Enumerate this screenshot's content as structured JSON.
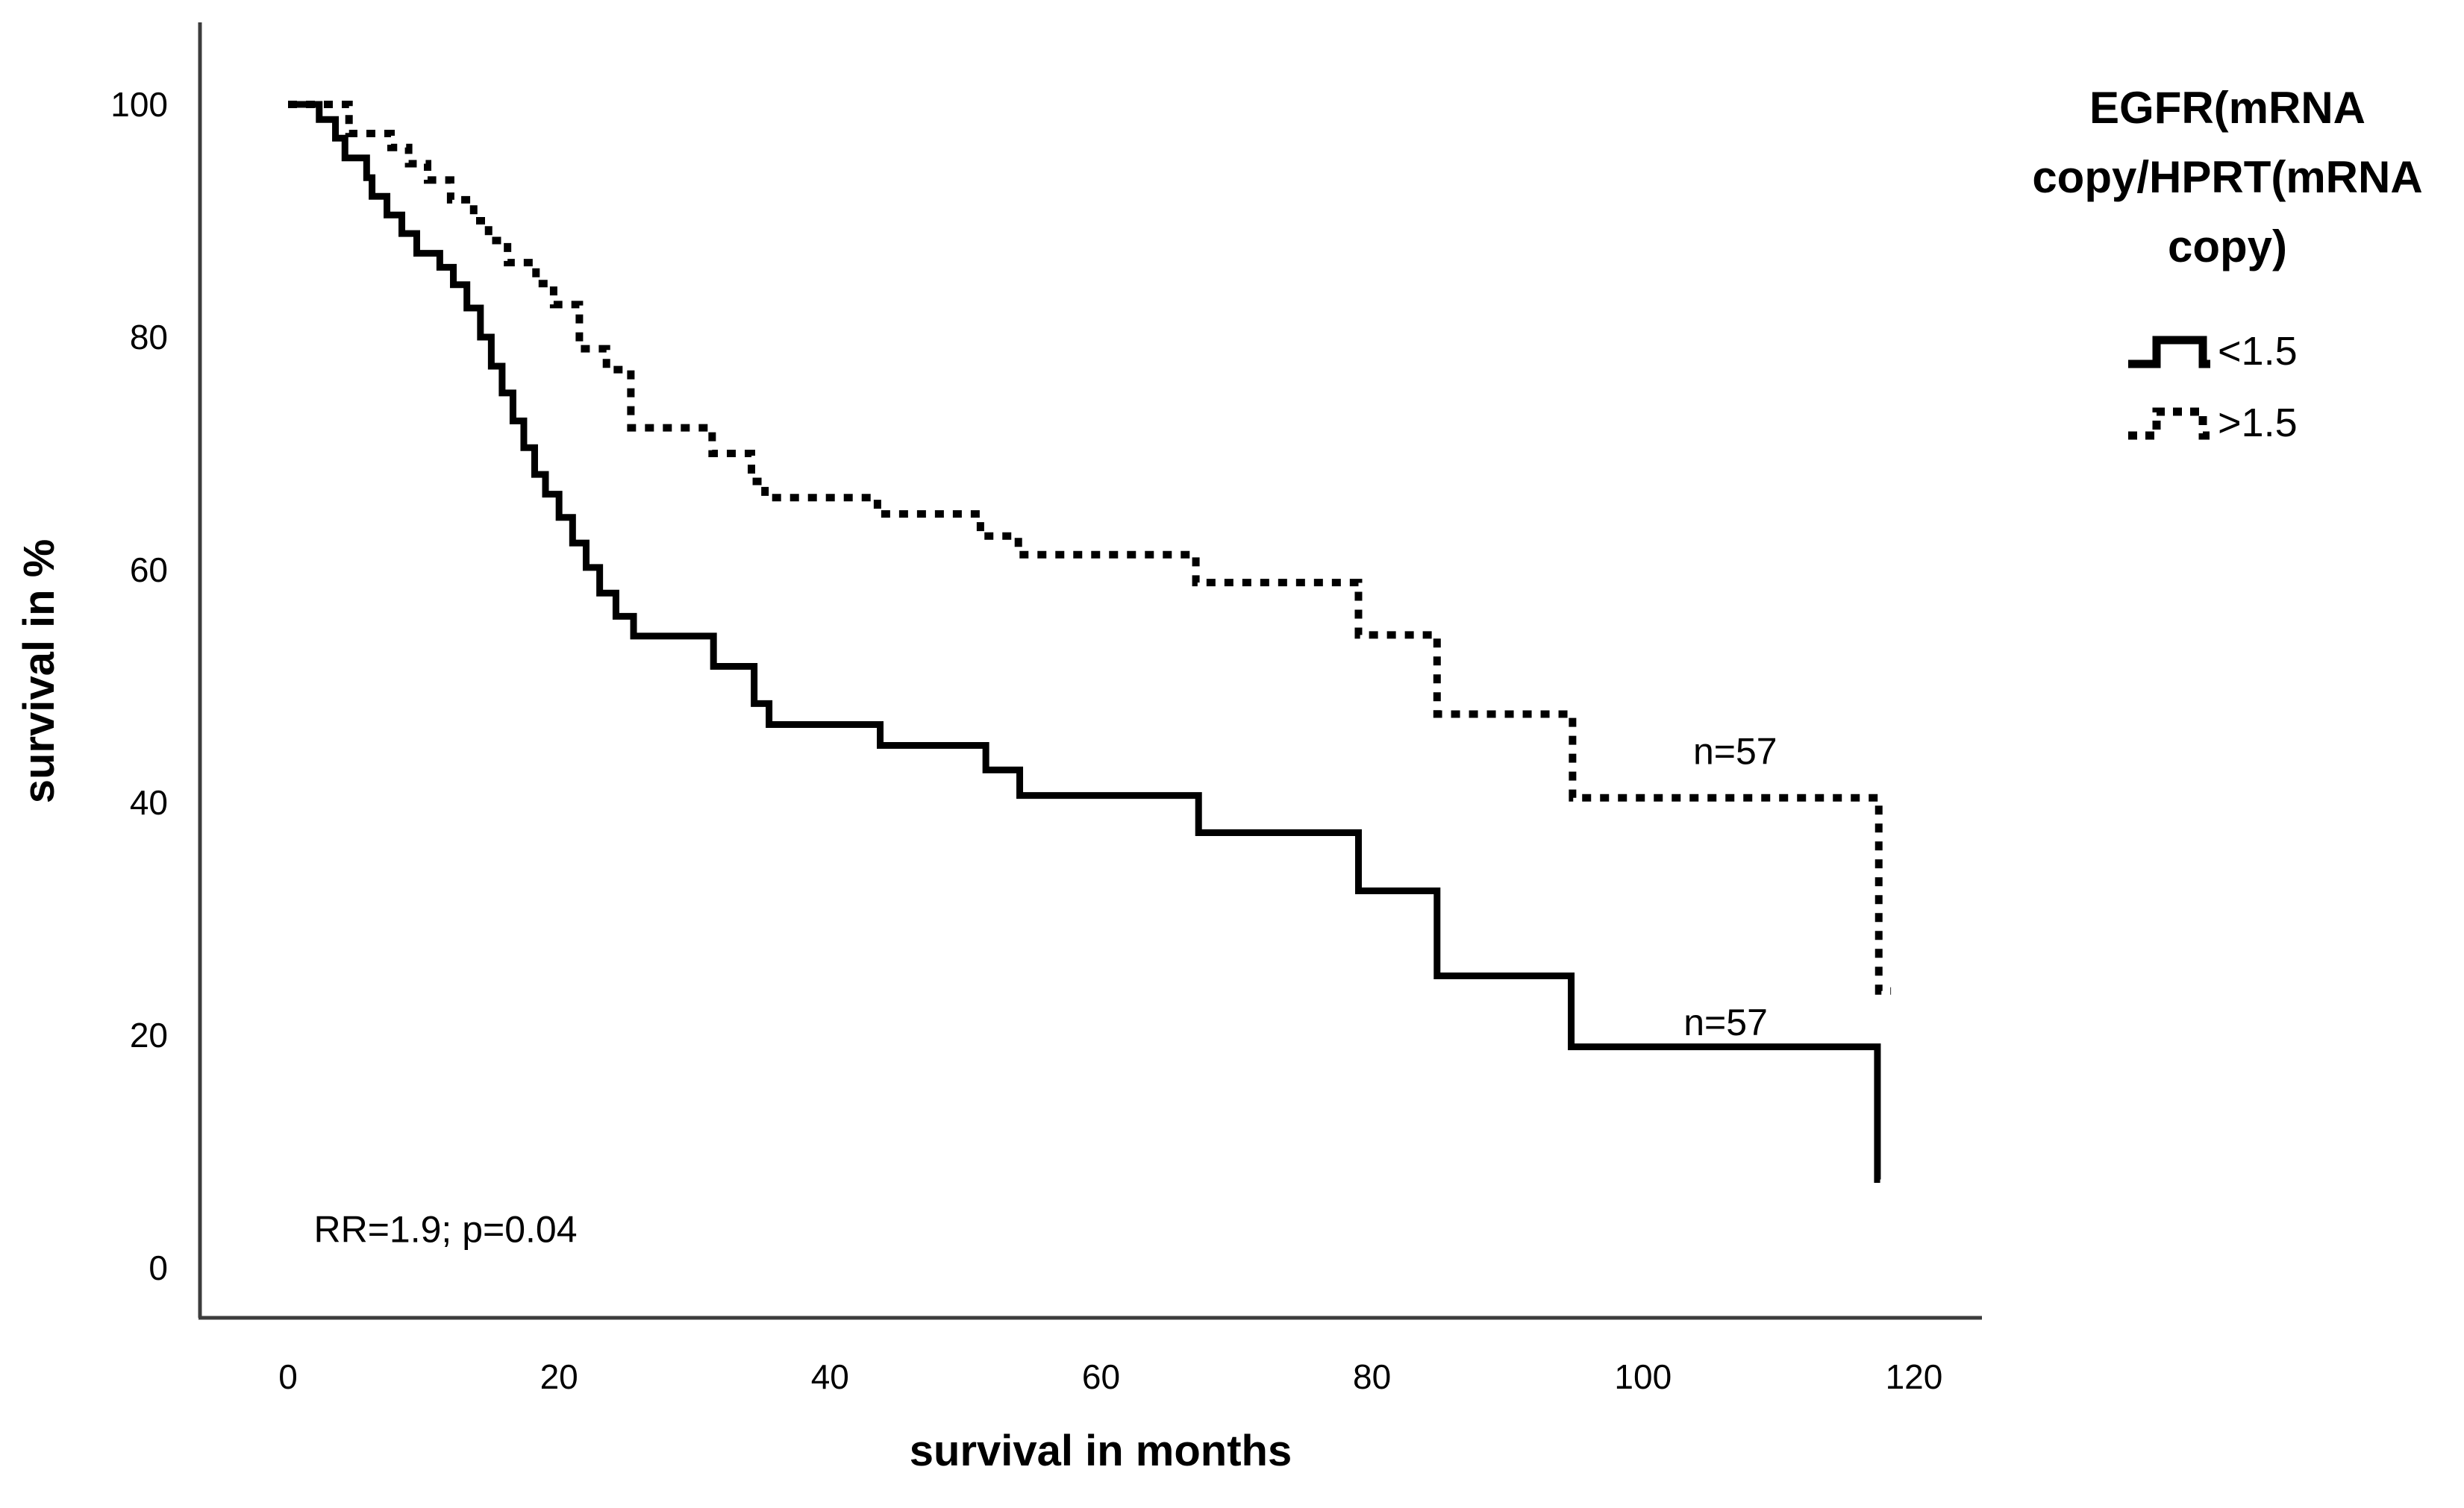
{
  "page": {
    "background": "#ffffff"
  },
  "colors": {
    "curve": "#000000",
    "axis": "#3c3c3c",
    "text": "#000000"
  },
  "chart_data": {
    "type": "line",
    "subtype": "kaplan-meier-step-curves",
    "title": "",
    "xlabel": "survival in months",
    "ylabel": "survival in %",
    "xlim": [
      0,
      125
    ],
    "ylim": [
      0,
      100
    ],
    "x_ticks": [
      0,
      20,
      40,
      60,
      80,
      100,
      120
    ],
    "y_ticks": [
      100,
      80,
      60,
      40,
      20,
      0
    ],
    "grid": false,
    "legend_position": "top-right",
    "series": [
      {
        "name": "<1.5",
        "line_style": "solid",
        "color": "#000000",
        "n_label": "n=57",
        "end_month": 117.5,
        "steps": [
          [
            0,
            100
          ],
          [
            2.3,
            98.7
          ],
          [
            3.5,
            97.1
          ],
          [
            4.2,
            95.4
          ],
          [
            5.8,
            93.7
          ],
          [
            6.2,
            92.1
          ],
          [
            7.3,
            90.5
          ],
          [
            8.4,
            88.9
          ],
          [
            9.5,
            87.2
          ],
          [
            11.2,
            86.0
          ],
          [
            12.2,
            84.5
          ],
          [
            13.2,
            82.5
          ],
          [
            14.2,
            80.0
          ],
          [
            15.0,
            77.5
          ],
          [
            15.8,
            75.2
          ],
          [
            16.6,
            72.8
          ],
          [
            17.4,
            70.5
          ],
          [
            18.2,
            68.2
          ],
          [
            19.0,
            66.5
          ],
          [
            20.0,
            64.5
          ],
          [
            21.0,
            62.3
          ],
          [
            22.0,
            60.2
          ],
          [
            23.0,
            58.0
          ],
          [
            24.2,
            56.0
          ],
          [
            25.5,
            54.3
          ],
          [
            31.4,
            51.7
          ],
          [
            34.4,
            48.5
          ],
          [
            35.5,
            46.7
          ],
          [
            43.7,
            44.9
          ],
          [
            51.5,
            42.8
          ],
          [
            54.0,
            40.6
          ],
          [
            67.2,
            37.4
          ],
          [
            79.0,
            32.4
          ],
          [
            84.8,
            25.1
          ],
          [
            94.7,
            19.0
          ],
          [
            117.3,
            7.6
          ]
        ]
      },
      {
        "name": ">1.5",
        "line_style": "dotted",
        "color": "#000000",
        "n_label": "n=57",
        "end_month": 118.3,
        "steps": [
          [
            0,
            100
          ],
          [
            4.5,
            97.5
          ],
          [
            7.6,
            96.3
          ],
          [
            8.9,
            94.9
          ],
          [
            10.3,
            93.5
          ],
          [
            12.0,
            91.8
          ],
          [
            13.7,
            90.0
          ],
          [
            14.8,
            88.3
          ],
          [
            16.2,
            86.4
          ],
          [
            18.3,
            84.6
          ],
          [
            19.6,
            82.8
          ],
          [
            21.5,
            79.0
          ],
          [
            23.5,
            77.2
          ],
          [
            25.3,
            72.2
          ],
          [
            31.3,
            70.0
          ],
          [
            34.2,
            67.6
          ],
          [
            35.2,
            66.2
          ],
          [
            43.5,
            64.8
          ],
          [
            51.1,
            62.9
          ],
          [
            53.9,
            61.3
          ],
          [
            67.0,
            58.9
          ],
          [
            79.0,
            54.4
          ],
          [
            84.8,
            47.6
          ],
          [
            94.8,
            40.4
          ],
          [
            117.4,
            23.8
          ]
        ]
      }
    ],
    "annotations": [
      {
        "text": "n=57",
        "series": ">1.5",
        "month": 106.8,
        "pct": 44.4,
        "anchor": "middle"
      },
      {
        "text": "n=57",
        "series": "<1.5",
        "month": 106.1,
        "pct": 21.1,
        "anchor": "middle"
      },
      {
        "text": "RR=1.9; p=0.04",
        "month": 1.9,
        "pct": 3.3,
        "anchor": "start"
      }
    ]
  },
  "legend": {
    "title_lines": [
      "EGFR(mRNA",
      "copy/HPRT(mRNA",
      "copy)"
    ],
    "entries": [
      {
        "label": "<1.5",
        "line_style": "solid"
      },
      {
        "label": ">1.5",
        "line_style": "dotted"
      }
    ]
  }
}
